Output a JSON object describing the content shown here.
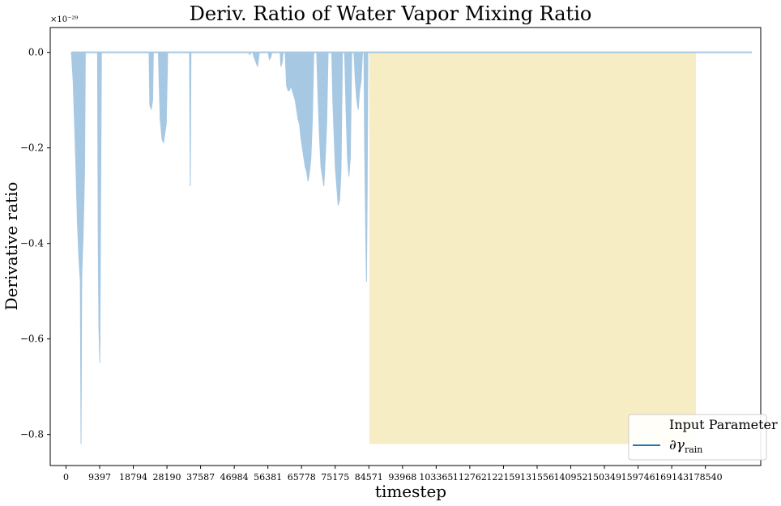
{
  "chart_data": {
    "type": "area",
    "title": "Deriv. Ratio of Water Vapor Mixing Ratio",
    "xlabel": "timestep",
    "ylabel": "Derivative ratio",
    "y_scale_label": "×10⁻²⁹",
    "x_ticks": [
      0,
      9397,
      18794,
      28190,
      37587,
      46984,
      56381,
      65778,
      75175,
      84571,
      93968,
      103365,
      112762,
      122159,
      131556,
      140952,
      150349,
      159746,
      169143,
      178540
    ],
    "y_ticks": [
      0.0,
      -0.2,
      -0.4,
      -0.6,
      -0.8
    ],
    "y_tick_labels": [
      "0.0",
      "−0.2",
      "−0.4",
      "−0.6",
      "−0.8"
    ],
    "xlim": [
      -4400,
      194000
    ],
    "ylim": [
      -0.865,
      0.052
    ],
    "grid": false,
    "legend": {
      "title": "Input Parameter",
      "location": "lower right",
      "entries": [
        {
          "label": "∂γ",
          "subscript": "rain",
          "color": "#1f77b4"
        }
      ]
    },
    "highlight_region": {
      "x_start": 84700,
      "x_end": 175900,
      "y_start": -0.82,
      "y_end": 0.0,
      "color": "#f7edc4"
    },
    "series": [
      {
        "name": "∂γrain",
        "color": "#a6c8e2",
        "baseline": 0.0,
        "x_end": 191500,
        "spikes": [
          [
            1500,
            0
          ],
          [
            2000,
            -0.06
          ],
          [
            2400,
            -0.15
          ],
          [
            2800,
            -0.25
          ],
          [
            3200,
            -0.36
          ],
          [
            3600,
            -0.43
          ],
          [
            4000,
            -0.48
          ],
          [
            4200,
            -0.82
          ],
          [
            4400,
            -0.47
          ],
          [
            4800,
            -0.38
          ],
          [
            5200,
            -0.25
          ],
          [
            5400,
            0
          ],
          [
            8800,
            0
          ],
          [
            9000,
            -0.4
          ],
          [
            9200,
            -0.58
          ],
          [
            9450,
            -0.65
          ],
          [
            9700,
            -0.28
          ],
          [
            9900,
            0
          ],
          [
            23200,
            0
          ],
          [
            23400,
            -0.11
          ],
          [
            23800,
            -0.12
          ],
          [
            24200,
            -0.1
          ],
          [
            24400,
            0
          ],
          [
            25800,
            0
          ],
          [
            26000,
            -0.06
          ],
          [
            26300,
            -0.14
          ],
          [
            26800,
            -0.18
          ],
          [
            27200,
            -0.19
          ],
          [
            27600,
            -0.17
          ],
          [
            28000,
            -0.15
          ],
          [
            28400,
            0
          ],
          [
            34500,
            0
          ],
          [
            34700,
            -0.28
          ],
          [
            34900,
            0
          ],
          [
            51000,
            0
          ],
          [
            51300,
            -0.005
          ],
          [
            51600,
            0
          ],
          [
            52200,
            0
          ],
          [
            52500,
            -0.01
          ],
          [
            53000,
            -0.02
          ],
          [
            53500,
            -0.03
          ],
          [
            54000,
            0
          ],
          [
            56500,
            0
          ],
          [
            56800,
            -0.015
          ],
          [
            57200,
            -0.01
          ],
          [
            57500,
            0
          ],
          [
            59800,
            0
          ],
          [
            60000,
            -0.03
          ],
          [
            60400,
            -0.02
          ],
          [
            60600,
            0
          ],
          [
            61200,
            0
          ],
          [
            61600,
            -0.07
          ],
          [
            62000,
            -0.08
          ],
          [
            62400,
            -0.08
          ],
          [
            62800,
            -0.07
          ],
          [
            63200,
            -0.08
          ],
          [
            63600,
            -0.09
          ],
          [
            64000,
            -0.1
          ],
          [
            64400,
            -0.12
          ],
          [
            64800,
            -0.14
          ],
          [
            65200,
            -0.15
          ],
          [
            65600,
            -0.18
          ],
          [
            66000,
            -0.2
          ],
          [
            66400,
            -0.22
          ],
          [
            66800,
            -0.24
          ],
          [
            67200,
            -0.25
          ],
          [
            67600,
            -0.27
          ],
          [
            68000,
            -0.25
          ],
          [
            68400,
            -0.22
          ],
          [
            68800,
            -0.14
          ],
          [
            69200,
            0
          ],
          [
            70000,
            0
          ],
          [
            70400,
            -0.1
          ],
          [
            70800,
            -0.18
          ],
          [
            71200,
            -0.24
          ],
          [
            71600,
            -0.26
          ],
          [
            72000,
            -0.28
          ],
          [
            72400,
            -0.22
          ],
          [
            72800,
            -0.15
          ],
          [
            73200,
            0
          ],
          [
            74200,
            0
          ],
          [
            74500,
            -0.1
          ],
          [
            74900,
            -0.18
          ],
          [
            75200,
            -0.24
          ],
          [
            75600,
            -0.28
          ],
          [
            76000,
            -0.32
          ],
          [
            76400,
            -0.31
          ],
          [
            76800,
            -0.25
          ],
          [
            77200,
            0
          ],
          [
            77800,
            0
          ],
          [
            78200,
            -0.12
          ],
          [
            78600,
            -0.22
          ],
          [
            79000,
            -0.26
          ],
          [
            79400,
            -0.22
          ],
          [
            79800,
            0
          ],
          [
            80400,
            0
          ],
          [
            80800,
            -0.06
          ],
          [
            81200,
            -0.1
          ],
          [
            81600,
            -0.12
          ],
          [
            82000,
            -0.08
          ],
          [
            82400,
            -0.06
          ],
          [
            82800,
            0
          ],
          [
            83200,
            0
          ],
          [
            83400,
            -0.2
          ],
          [
            83700,
            -0.38
          ],
          [
            83900,
            -0.48
          ],
          [
            84100,
            -0.3
          ],
          [
            84300,
            0
          ]
        ]
      }
    ]
  }
}
